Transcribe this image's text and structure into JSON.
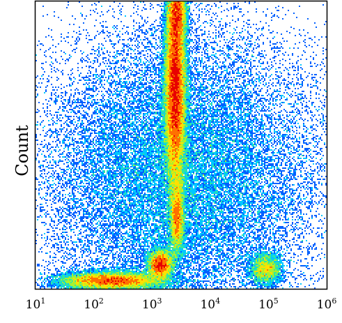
{
  "chart_data": {
    "type": "scatter",
    "subtype": "flow-cytometry-density-plot",
    "title": "",
    "xlabel": "",
    "ylabel": "Count",
    "x_scale": "log",
    "xlim": [
      10,
      1000000
    ],
    "ylim": [
      0,
      100
    ],
    "grid": false,
    "legend": "none",
    "x_ticks": [
      {
        "value": 10,
        "base": "10",
        "exp": "1"
      },
      {
        "value": 100,
        "base": "10",
        "exp": "2"
      },
      {
        "value": 1000,
        "base": "10",
        "exp": "3"
      },
      {
        "value": 10000,
        "base": "10",
        "exp": "4"
      },
      {
        "value": 100000,
        "base": "10",
        "exp": "5"
      },
      {
        "value": 1000000,
        "base": "10",
        "exp": "6"
      }
    ],
    "colormap": [
      "#0000c8",
      "#0060ff",
      "#00c8ff",
      "#30e8a0",
      "#a8f030",
      "#ffe000",
      "#ff7000",
      "#e80000"
    ],
    "populations": [
      {
        "name": "upper-vertical-band",
        "x_center": 2500,
        "y_center": 70,
        "log_x_spread": 0.09,
        "y_spread": 18,
        "density": 1.0
      },
      {
        "name": "upper-band-top",
        "x_center": 2700,
        "y_center": 96,
        "log_x_spread": 0.08,
        "y_spread": 5,
        "density": 0.6
      },
      {
        "name": "lower-vertical-band",
        "x_center": 2700,
        "y_center": 25,
        "log_x_spread": 0.06,
        "y_spread": 7,
        "density": 0.55
      },
      {
        "name": "bright-cluster",
        "x_center": 1400,
        "y_center": 8.5,
        "log_x_spread": 0.1,
        "y_spread": 2.5,
        "density": 1.0
      },
      {
        "name": "bottom-tail",
        "x_center": 200,
        "y_center": 2.8,
        "log_x_spread": 0.45,
        "y_spread": 1.6,
        "density": 0.75
      },
      {
        "name": "high-fluorescence-cluster",
        "x_center": 90000,
        "y_center": 7,
        "log_x_spread": 0.14,
        "y_spread": 2.8,
        "density": 0.35
      },
      {
        "name": "scattered-events",
        "x_center": 3000,
        "y_center": 40,
        "log_x_spread": 1.2,
        "y_spread": 25,
        "density": 0.05
      }
    ]
  }
}
